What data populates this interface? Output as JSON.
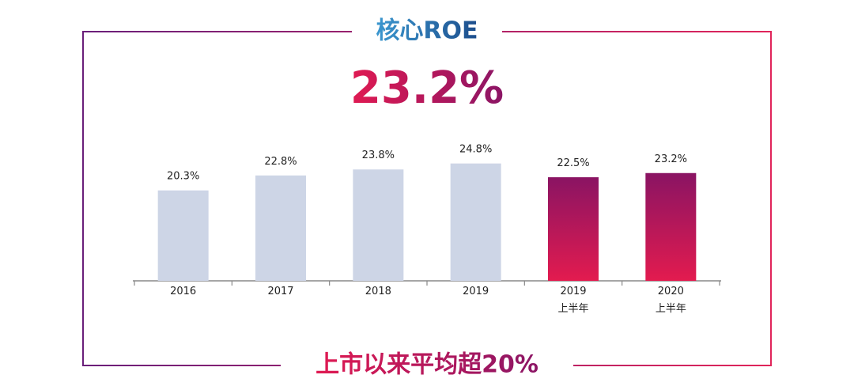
{
  "chart_data": {
    "type": "bar",
    "title": "核心ROE",
    "subtitle": "23.2%",
    "annotation": "上市以来平均超20%",
    "categories": [
      "2016",
      "2017",
      "2018",
      "2019",
      "2019\n上半年",
      "2020\n上半年"
    ],
    "values": [
      20.3,
      22.8,
      23.8,
      24.8,
      22.5,
      23.2
    ],
    "value_labels": [
      "20.3%",
      "22.8%",
      "23.8%",
      "24.8%",
      "22.5%",
      "23.2%"
    ],
    "color": "#cdd5e6",
    "highlight": [
      false,
      false,
      false,
      false,
      true,
      true
    ],
    "highlight_colors": [
      "#8a1463",
      "#e31b4f"
    ],
    "ylim": [
      5.2,
      27
    ]
  }
}
